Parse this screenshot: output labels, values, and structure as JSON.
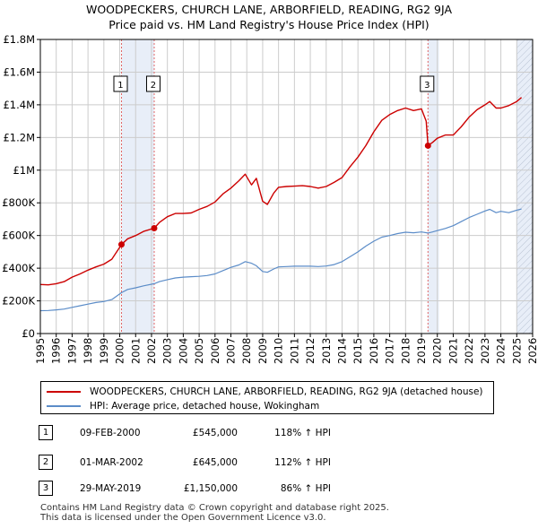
{
  "title": {
    "line1": "WOODPECKERS, CHURCH LANE, ARBORFIELD, READING, RG2 9JA",
    "line2": "Price paid vs. HM Land Registry's House Price Index (HPI)"
  },
  "colors": {
    "property": "#cc0000",
    "hpi": "#5b8cc8",
    "shade": "#e8eef8",
    "grid": "#cccccc",
    "marker_line": "#e06666"
  },
  "chart_data": {
    "type": "line",
    "title": "Price paid vs. HM Land Registry's House Price Index (HPI)",
    "xlim": [
      1995,
      2026
    ],
    "ylim": [
      0,
      1800000
    ],
    "x_ticks": [
      "1995",
      "1996",
      "1997",
      "1998",
      "1999",
      "2000",
      "2001",
      "2002",
      "2003",
      "2004",
      "2005",
      "2006",
      "2007",
      "2008",
      "2009",
      "2010",
      "2011",
      "2012",
      "2013",
      "2014",
      "2015",
      "2016",
      "2017",
      "2018",
      "2019",
      "2020",
      "2021",
      "2022",
      "2023",
      "2024",
      "2025",
      "2026"
    ],
    "y_ticks": [
      {
        "value": 0,
        "label": "£0"
      },
      {
        "value": 200000,
        "label": "£200K"
      },
      {
        "value": 400000,
        "label": "£400K"
      },
      {
        "value": 600000,
        "label": "£600K"
      },
      {
        "value": 800000,
        "label": "£800K"
      },
      {
        "value": 1000000,
        "label": "£1M"
      },
      {
        "value": 1200000,
        "label": "£1.2M"
      },
      {
        "value": 1400000,
        "label": "£1.4M"
      },
      {
        "value": 1600000,
        "label": "£1.6M"
      },
      {
        "value": 1800000,
        "label": "£1.8M"
      }
    ],
    "shaded_periods": [
      [
        2000.11,
        2002.17
      ],
      [
        2019.41,
        2020.1
      ],
      [
        2025.0,
        2026.0
      ]
    ],
    "hatched_period": [
      2025.0,
      2026.0
    ],
    "series": [
      {
        "name": "WOODPECKERS, CHURCH LANE, ARBORFIELD, READING, RG2 9JA (detached house)",
        "key": "property",
        "x": [
          1995.0,
          1995.5,
          1996.0,
          1996.5,
          1997.0,
          1997.5,
          1998.0,
          1998.5,
          1999.0,
          1999.5,
          2000.11,
          2000.5,
          2001.0,
          2001.5,
          2002.17,
          2002.5,
          2003.0,
          2003.5,
          2004.0,
          2004.5,
          2005.0,
          2005.5,
          2006.0,
          2006.5,
          2007.0,
          2007.5,
          2007.9,
          2008.3,
          2008.6,
          2009.0,
          2009.3,
          2009.7,
          2010.0,
          2010.5,
          2011.0,
          2011.5,
          2012.0,
          2012.5,
          2013.0,
          2013.5,
          2014.0,
          2014.5,
          2015.0,
          2015.5,
          2016.0,
          2016.5,
          2017.0,
          2017.5,
          2018.0,
          2018.5,
          2019.0,
          2019.3,
          2019.41,
          2019.7,
          2020.0,
          2020.5,
          2021.0,
          2021.5,
          2022.0,
          2022.5,
          2023.0,
          2023.3,
          2023.7,
          2024.0,
          2024.5,
          2025.0,
          2025.3
        ],
        "y": [
          300000,
          298000,
          305000,
          318000,
          345000,
          365000,
          388000,
          408000,
          425000,
          455000,
          545000,
          580000,
          600000,
          625000,
          645000,
          680000,
          715000,
          735000,
          735000,
          738000,
          760000,
          778000,
          805000,
          855000,
          890000,
          935000,
          975000,
          910000,
          950000,
          810000,
          790000,
          860000,
          895000,
          900000,
          902000,
          905000,
          900000,
          890000,
          900000,
          925000,
          955000,
          1020000,
          1080000,
          1150000,
          1235000,
          1305000,
          1340000,
          1365000,
          1380000,
          1365000,
          1375000,
          1300000,
          1150000,
          1170000,
          1195000,
          1215000,
          1215000,
          1265000,
          1325000,
          1370000,
          1400000,
          1420000,
          1380000,
          1380000,
          1395000,
          1420000,
          1445000
        ]
      },
      {
        "name": "HPI: Average price, detached house, Wokingham",
        "key": "hpi",
        "x": [
          1995.0,
          1995.5,
          1996.0,
          1996.5,
          1997.0,
          1997.5,
          1998.0,
          1998.5,
          1999.0,
          1999.5,
          2000.11,
          2000.5,
          2001.0,
          2001.5,
          2002.17,
          2002.5,
          2003.0,
          2003.5,
          2004.0,
          2004.5,
          2005.0,
          2005.5,
          2006.0,
          2006.5,
          2007.0,
          2007.5,
          2007.9,
          2008.3,
          2008.6,
          2009.0,
          2009.3,
          2009.7,
          2010.0,
          2010.5,
          2011.0,
          2011.5,
          2012.0,
          2012.5,
          2013.0,
          2013.5,
          2014.0,
          2014.5,
          2015.0,
          2015.5,
          2016.0,
          2016.5,
          2017.0,
          2017.5,
          2018.0,
          2018.5,
          2019.0,
          2019.41,
          2019.7,
          2020.0,
          2020.5,
          2021.0,
          2021.5,
          2022.0,
          2022.5,
          2023.0,
          2023.3,
          2023.7,
          2024.0,
          2024.5,
          2025.0,
          2025.3
        ],
        "y": [
          140000,
          141000,
          145000,
          150000,
          160000,
          170000,
          180000,
          190000,
          196000,
          208000,
          250000,
          270000,
          280000,
          292000,
          305000,
          318000,
          330000,
          340000,
          345000,
          348000,
          350000,
          355000,
          365000,
          385000,
          405000,
          420000,
          440000,
          430000,
          415000,
          380000,
          375000,
          395000,
          408000,
          410000,
          412000,
          412000,
          412000,
          410000,
          413000,
          422000,
          440000,
          470000,
          500000,
          535000,
          565000,
          590000,
          600000,
          612000,
          620000,
          617000,
          622000,
          615000,
          622000,
          630000,
          643000,
          660000,
          685000,
          710000,
          730000,
          750000,
          760000,
          740000,
          748000,
          740000,
          755000,
          762000
        ]
      }
    ],
    "sales": [
      {
        "id": "1",
        "x": 2000.11,
        "y": 545000
      },
      {
        "id": "2",
        "x": 2002.17,
        "y": 645000
      },
      {
        "id": "3",
        "x": 2019.41,
        "y": 1150000
      }
    ]
  },
  "legend": {
    "property_label": "WOODPECKERS, CHURCH LANE, ARBORFIELD, READING, RG2 9JA (detached house)",
    "hpi_label": "HPI: Average price, detached house, Wokingham"
  },
  "sales_table": [
    {
      "id": "1",
      "date": "09-FEB-2000",
      "price": "£545,000",
      "hpi": "118% ↑ HPI"
    },
    {
      "id": "2",
      "date": "01-MAR-2002",
      "price": "£645,000",
      "hpi": "112% ↑ HPI"
    },
    {
      "id": "3",
      "date": "29-MAY-2019",
      "price": "£1,150,000",
      "hpi": "86% ↑ HPI"
    }
  ],
  "footer": {
    "line1": "Contains HM Land Registry data © Crown copyright and database right 2025.",
    "line2": "This data is licensed under the Open Government Licence v3.0."
  }
}
